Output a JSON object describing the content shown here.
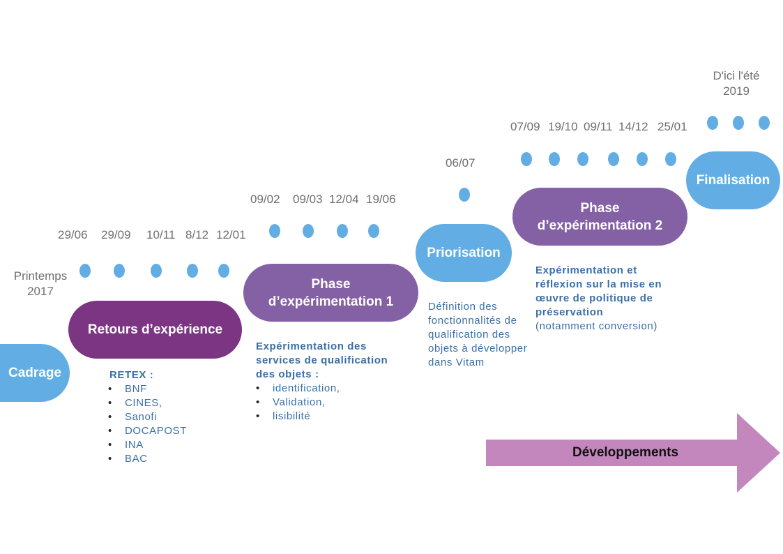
{
  "milestones": {
    "printemps": "Printemps\n2017",
    "ete": "D'ici l'été\n2019"
  },
  "dates": {
    "g1": [
      "29/06",
      "29/09",
      "10/11",
      "8/12",
      "12/01"
    ],
    "g2": [
      "09/02",
      "09/03",
      "12/04",
      "19/06"
    ],
    "g3": [
      "06/07"
    ],
    "g4": [
      "07/09",
      "19/10",
      "09/11",
      "14/12",
      "25/01"
    ]
  },
  "phases": {
    "cadrage": "Cadrage",
    "retours": "Retours d’expérience",
    "phase1": "Phase\nd’expérimentation 1",
    "priorisation": "Priorisation",
    "phase2": "Phase\nd’expérimentation 2",
    "finalisation": "Finalisation"
  },
  "retex": {
    "title": "RETEX :",
    "items": [
      "BNF",
      "CINES,",
      "Sanofi",
      "DOCAPOST",
      "INA",
      "BAC"
    ]
  },
  "phase1_desc": {
    "title": "Expérimentation des services de qualification des objets :",
    "items": [
      "identification,",
      "Validation,",
      " lisibilité"
    ]
  },
  "priorisation_desc": "Définition des fonctionnalités de qualification des objets à développer dans Vitam",
  "phase2_desc": {
    "title": "Expérimentation et réflexion sur la mise en œuvre de politique de préservation",
    "note": "(notamment conversion)"
  },
  "arrow": {
    "label": "Développements"
  },
  "colors": {
    "blue": "#62aee4",
    "purple_dark": "#7b3582",
    "purple": "#8460a5",
    "arrow": "#c387bd",
    "text_blue": "#3a6fa6",
    "date_gray": "#6f6f6f"
  }
}
